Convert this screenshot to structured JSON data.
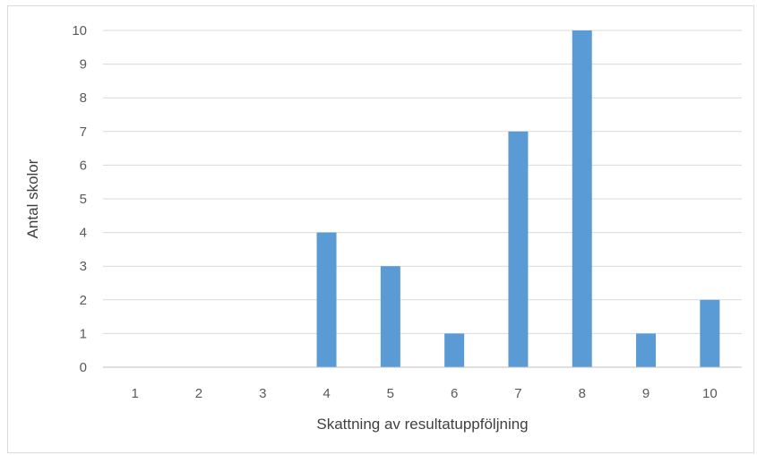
{
  "chart_data": {
    "type": "bar",
    "title": "",
    "xlabel": "Skattning av resultatuppföljning",
    "ylabel": "Antal skolor",
    "categories": [
      "1",
      "2",
      "3",
      "4",
      "5",
      "6",
      "7",
      "8",
      "9",
      "10"
    ],
    "values": [
      0,
      0,
      0,
      4,
      3,
      1,
      7,
      10,
      1,
      2
    ],
    "y_ticks": [
      "0",
      "1",
      "2",
      "3",
      "4",
      "5",
      "6",
      "7",
      "8",
      "9",
      "10"
    ],
    "ylim": [
      0,
      10
    ],
    "grid": true,
    "legend": "none",
    "colors": {
      "bar": "#5b9bd5",
      "grid": "#d9d9d9",
      "axis": "#bfbfbf",
      "text": "#595959"
    }
  }
}
